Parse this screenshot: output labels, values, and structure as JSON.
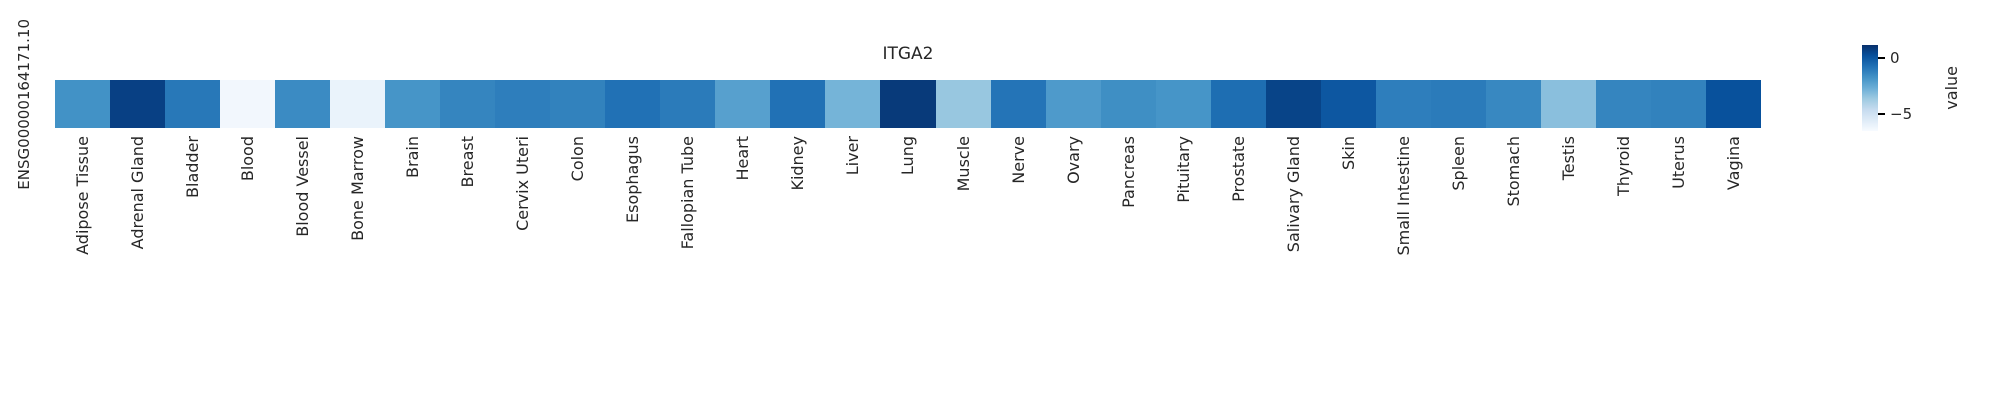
{
  "figure": {
    "background": "#ffffff",
    "text_color": "#262626"
  },
  "chart_data": {
    "type": "heatmap",
    "title": "ITGA2",
    "ylabel": "ENSG00000164171.10",
    "colormap": "Blues",
    "categories": [
      "Adipose Tissue",
      "Adrenal Gland",
      "Bladder",
      "Blood",
      "Blood Vessel",
      "Bone Marrow",
      "Brain",
      "Breast",
      "Cervix Uteri",
      "Colon",
      "Esophagus",
      "Fallopian Tube",
      "Heart",
      "Kidney",
      "Liver",
      "Lung",
      "Muscle",
      "Nerve",
      "Ovary",
      "Pancreas",
      "Pituitary",
      "Prostate",
      "Salivary Gland",
      "Skin",
      "Small Intestine",
      "Spleen",
      "Stomach",
      "Testis",
      "Thyroid",
      "Uterus",
      "Vagina"
    ],
    "values": [
      -1.5,
      1.0,
      -0.7,
      -6.3,
      -1.3,
      -6.0,
      -1.6,
      -1.1,
      -0.9,
      -1.0,
      -0.5,
      -0.8,
      -2.0,
      -0.5,
      -2.7,
      1.2,
      -3.4,
      -0.6,
      -1.8,
      -1.4,
      -1.6,
      -0.4,
      0.9,
      0.3,
      -0.9,
      -0.8,
      -1.2,
      -3.1,
      -1.1,
      -1.0,
      0.5
    ],
    "cell_colors": [
      "#4292c6",
      "#084084",
      "#2878b8",
      "#f2f7fd",
      "#3b8bc3",
      "#eaf3fb",
      "#4695c8",
      "#3585bf",
      "#2e7ebc",
      "#3282bd",
      "#2171b5",
      "#2b7bba",
      "#57a0ce",
      "#2171b5",
      "#75b4d8",
      "#083a7a",
      "#98c7e0",
      "#2474b7",
      "#4e9acb",
      "#3f8fc4",
      "#4695c8",
      "#1e6eb2",
      "#084488",
      "#0d57a1",
      "#2e7ebc",
      "#2b7bba",
      "#3888c1",
      "#8abfdd",
      "#3585bf",
      "#3282bd",
      "#08519c"
    ],
    "colorbar": {
      "label": "value",
      "vmin": -6.5,
      "vmax": 1.2,
      "ticks": [
        {
          "value": 0,
          "label": "0"
        },
        {
          "value": -5,
          "label": "−5"
        }
      ],
      "gradient_stops_low_to_high": [
        "#f7fbff",
        "#deebf7",
        "#c6dbef",
        "#9ecae1",
        "#6baed6",
        "#4292c6",
        "#2171b5",
        "#08519c",
        "#08306b"
      ]
    }
  }
}
